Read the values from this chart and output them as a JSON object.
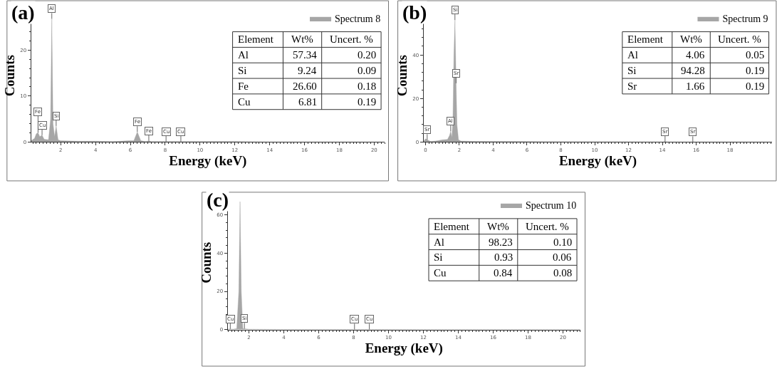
{
  "chart_data": [
    {
      "type": "area",
      "title": "(a)",
      "xlabel": "Energy (keV)",
      "ylabel": "Counts",
      "legend": "top right",
      "marker": "none",
      "xlim": [
        0.3,
        20.6
      ],
      "xticks": [
        2,
        4,
        6,
        8,
        10,
        12,
        14,
        16,
        18,
        20
      ],
      "ylim": [
        0,
        28.9
      ],
      "yticks": [
        0,
        10,
        20
      ],
      "series": [
        {
          "name": "Spectrum 8",
          "color": "#a6a6a6",
          "x": [
            0.3,
            0.5,
            0.6,
            0.7,
            0.8,
            0.93,
            1.05,
            1.3,
            1.42,
            1.49,
            1.56,
            1.65,
            1.74,
            1.85,
            2.0,
            3,
            4,
            5,
            5.9,
            6.2,
            6.4,
            6.6,
            6.9,
            7.06,
            7.2,
            8.05,
            8.9,
            10,
            12,
            14,
            16,
            18,
            20,
            20.6
          ],
          "values": [
            0.3,
            0.8,
            1.8,
            2.0,
            1.2,
            1.5,
            0.6,
            0.5,
            5,
            26.8,
            4,
            1.2,
            3.5,
            0.5,
            0.3,
            0.2,
            0.2,
            0.1,
            0.3,
            0.3,
            2.2,
            0.3,
            0.1,
            0.3,
            0.1,
            0.1,
            0.1,
            0.1,
            0.1,
            0,
            0,
            0,
            0,
            0
          ]
        }
      ],
      "annotations": [
        "Element",
        "Wt%",
        "Uncert. %",
        "Al",
        "57.34",
        "0.20",
        "Si",
        "9.24",
        "0.09",
        "Fe",
        "26.60",
        "0.18",
        "Cu",
        "6.81",
        "0.19",
        {
          "text": "Al",
          "x": 1.49,
          "y": 26.8
        },
        {
          "text": "Fe",
          "x": 0.7,
          "y": 2.0
        },
        {
          "text": "Cu",
          "x": 0.93,
          "y": 1.5
        },
        {
          "text": "Si",
          "x": 1.74,
          "y": 3.5
        },
        {
          "text": "Fe",
          "x": 6.4,
          "y": 2.2
        },
        {
          "text": "Fe",
          "x": 7.06,
          "y": 0.3
        },
        {
          "text": "Cu",
          "x": 8.05,
          "y": 0.1
        },
        {
          "text": "Cu",
          "x": 8.9,
          "y": 0.1
        }
      ]
    },
    {
      "type": "area",
      "title": "(b)",
      "xlabel": "Energy (keV)",
      "ylabel": "Counts",
      "legend": "top right",
      "marker": "none",
      "xlim": [
        -0.12,
        20.5
      ],
      "xticks": [
        0,
        2,
        4,
        6,
        8,
        10,
        12,
        14,
        16,
        18
      ],
      "ylim": [
        0,
        61
      ],
      "yticks": [
        0,
        20,
        40
      ],
      "series": [
        {
          "name": "Spectrum 9",
          "color": "#a6a6a6",
          "x": [
            -0.1,
            0,
            0.1,
            0.3,
            0.6,
            1.0,
            1.3,
            1.42,
            1.49,
            1.56,
            1.62,
            1.68,
            1.74,
            1.78,
            1.81,
            1.86,
            1.95,
            2.1,
            3,
            6,
            10,
            14,
            14.16,
            14.3,
            15.8,
            18,
            20.5
          ],
          "values": [
            0.5,
            1.5,
            1.0,
            0.3,
            0.5,
            1.0,
            1.2,
            3,
            5,
            2,
            10,
            40,
            56,
            40,
            27,
            8,
            1,
            0.5,
            0.3,
            0.2,
            0.1,
            0,
            0.2,
            0,
            0,
            0,
            0
          ]
        }
      ],
      "annotations": [
        "Element",
        "Wt%",
        "Uncert. %",
        "Al",
        "4.06",
        "0.05",
        "Si",
        "94.28",
        "0.19",
        "Sr",
        "1.66",
        "0.19",
        {
          "text": "Si",
          "x": 1.74,
          "y": 56
        },
        {
          "text": "Sr",
          "x": 1.81,
          "y": 27
        },
        {
          "text": "Al",
          "x": 1.49,
          "y": 5
        },
        {
          "text": "Sr",
          "x": 0.1,
          "y": 1.0
        },
        {
          "text": "Sr",
          "x": 14.16,
          "y": 0.2
        },
        {
          "text": "Sr",
          "x": 15.8,
          "y": 0
        }
      ]
    },
    {
      "type": "area",
      "title": "(c)",
      "xlabel": "Energy (keV)",
      "ylabel": "Counts",
      "legend": "top right",
      "marker": "none",
      "xlim": [
        0.78,
        21
      ],
      "xticks": [
        2,
        4,
        6,
        8,
        10,
        12,
        14,
        16,
        18,
        20
      ],
      "ylim": [
        0,
        70
      ],
      "yticks": [
        0,
        20,
        40,
        60
      ],
      "series": [
        {
          "name": "Spectrum 10",
          "color": "#a6a6a6",
          "x": [
            0.78,
            0.93,
            1.1,
            1.3,
            1.42,
            1.49,
            1.56,
            1.65,
            1.74,
            1.85,
            2,
            4,
            8.05,
            8.9,
            12,
            16,
            20,
            21
          ],
          "values": [
            0.2,
            0.3,
            0.2,
            0.5,
            20,
            67,
            20,
            0.5,
            0.5,
            0.3,
            0.2,
            0.1,
            0.1,
            0.1,
            0,
            0,
            0,
            0
          ]
        }
      ],
      "annotations": [
        "Element",
        "Wt%",
        "Uncert. %",
        "Al",
        "98.23",
        "0.10",
        "Si",
        "0.93",
        "0.06",
        "Cu",
        "0.84",
        "0.08",
        {
          "text": "Cu",
          "x": 0.93,
          "y": 0.3
        },
        {
          "text": "Si",
          "x": 1.74,
          "y": 0.5
        },
        {
          "text": "Cu",
          "x": 8.05,
          "y": 0.1
        },
        {
          "text": "Cu",
          "x": 8.9,
          "y": 0.1
        }
      ]
    }
  ]
}
